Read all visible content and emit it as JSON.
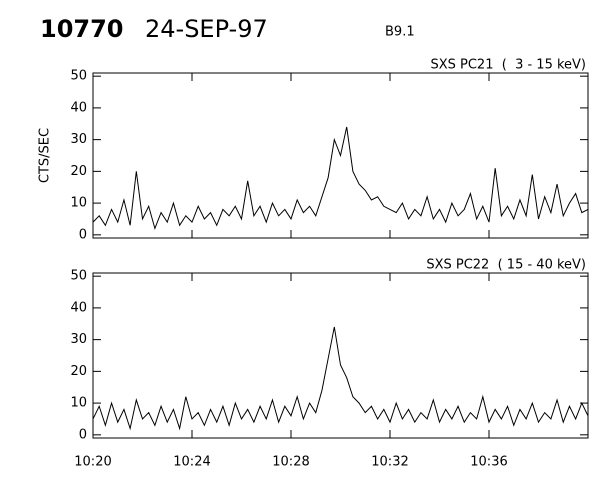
{
  "header": {
    "id": "10770",
    "date": "24-SEP-97",
    "class": "B9.1"
  },
  "chart_data": [
    {
      "type": "line",
      "title": "SXS PC21  (  3 - 15 keV)",
      "ylabel": "CTS/SEC",
      "color": "#000000",
      "xlim": [
        620,
        640
      ],
      "ylim": [
        -1,
        51
      ],
      "yticks": [
        0,
        10,
        20,
        30,
        40,
        50
      ],
      "x": [
        620,
        620.25,
        620.5,
        620.75,
        621,
        621.25,
        621.5,
        621.75,
        622,
        622.25,
        622.5,
        622.75,
        623,
        623.25,
        623.5,
        623.75,
        624,
        624.25,
        624.5,
        624.75,
        625,
        625.25,
        625.5,
        625.75,
        626,
        626.25,
        626.5,
        626.75,
        627,
        627.25,
        627.5,
        627.75,
        628,
        628.25,
        628.5,
        628.75,
        629,
        629.25,
        629.5,
        629.75,
        630,
        630.25,
        630.5,
        630.75,
        631,
        631.25,
        631.5,
        631.75,
        632,
        632.25,
        632.5,
        632.75,
        633,
        633.25,
        633.5,
        633.75,
        634,
        634.25,
        634.5,
        634.75,
        635,
        635.25,
        635.5,
        635.75,
        636,
        636.25,
        636.5,
        636.75,
        637,
        637.25,
        637.5,
        637.75,
        638,
        638.25,
        638.5,
        638.75,
        639,
        639.25,
        639.5,
        639.75,
        640
      ],
      "values": [
        4,
        6,
        3,
        8,
        4,
        11,
        3,
        20,
        5,
        9,
        2,
        7,
        4,
        10,
        3,
        6,
        4,
        9,
        5,
        7,
        3,
        8,
        6,
        9,
        5,
        17,
        6,
        9,
        4,
        10,
        6,
        8,
        5,
        11,
        7,
        9,
        6,
        12,
        18,
        30,
        25,
        34,
        20,
        16,
        14,
        11,
        12,
        9,
        8,
        7,
        10,
        5,
        8,
        6,
        12,
        5,
        8,
        4,
        10,
        6,
        8,
        13,
        5,
        9,
        4,
        21,
        6,
        9,
        5,
        11,
        6,
        19,
        5,
        12,
        7,
        16,
        6,
        10,
        13,
        7,
        8
      ]
    },
    {
      "type": "line",
      "title": "SXS PC22  ( 15 - 40 keV)",
      "color": "#000000",
      "xlim": [
        620,
        640
      ],
      "ylim": [
        -1,
        51
      ],
      "yticks": [
        0,
        10,
        20,
        30,
        40,
        50
      ],
      "xticks": [
        {
          "value": 620,
          "label": "10:20"
        },
        {
          "value": 624,
          "label": "10:24"
        },
        {
          "value": 628,
          "label": "10:28"
        },
        {
          "value": 632,
          "label": "10:32"
        },
        {
          "value": 636,
          "label": "10:36"
        }
      ],
      "x": [
        620,
        620.25,
        620.5,
        620.75,
        621,
        621.25,
        621.5,
        621.75,
        622,
        622.25,
        622.5,
        622.75,
        623,
        623.25,
        623.5,
        623.75,
        624,
        624.25,
        624.5,
        624.75,
        625,
        625.25,
        625.5,
        625.75,
        626,
        626.25,
        626.5,
        626.75,
        627,
        627.25,
        627.5,
        627.75,
        628,
        628.25,
        628.5,
        628.75,
        629,
        629.25,
        629.5,
        629.75,
        630,
        630.25,
        630.5,
        630.75,
        631,
        631.25,
        631.5,
        631.75,
        632,
        632.25,
        632.5,
        632.75,
        633,
        633.25,
        633.5,
        633.75,
        634,
        634.25,
        634.5,
        634.75,
        635,
        635.25,
        635.5,
        635.75,
        636,
        636.25,
        636.5,
        636.75,
        637,
        637.25,
        637.5,
        637.75,
        638,
        638.25,
        638.5,
        638.75,
        639,
        639.25,
        639.5,
        639.75,
        640
      ],
      "values": [
        5,
        9,
        3,
        10,
        4,
        8,
        2,
        11,
        5,
        7,
        3,
        9,
        4,
        8,
        2,
        12,
        5,
        7,
        3,
        8,
        4,
        9,
        3,
        10,
        5,
        8,
        4,
        9,
        5,
        11,
        4,
        9,
        6,
        12,
        5,
        10,
        7,
        14,
        24,
        34,
        22,
        18,
        12,
        10,
        7,
        9,
        5,
        8,
        4,
        10,
        5,
        8,
        4,
        7,
        5,
        11,
        4,
        8,
        5,
        9,
        4,
        7,
        5,
        12,
        4,
        8,
        5,
        9,
        3,
        8,
        5,
        10,
        4,
        7,
        5,
        11,
        4,
        9,
        5,
        10,
        6
      ]
    }
  ]
}
